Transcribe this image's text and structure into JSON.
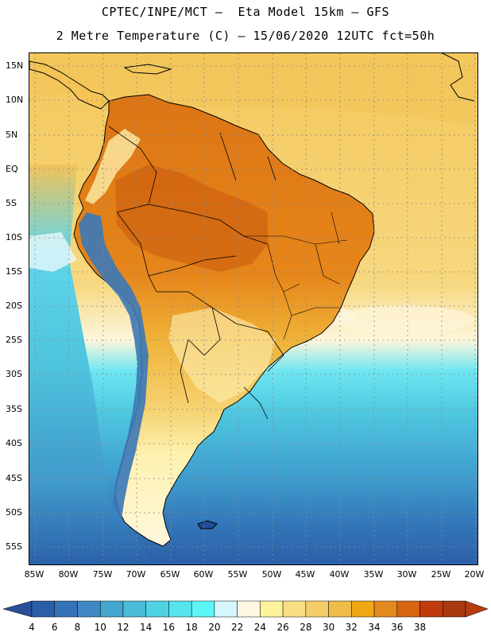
{
  "title": {
    "line1": "CPTEC/INPE/MCT –  Eta Model 15km – GFS",
    "line2": "2 Metre Temperature (C) – 15/06/2020 12UTC fct=50h"
  },
  "map": {
    "lat_labels": [
      "15N",
      "10N",
      "5N",
      "EQ",
      "5S",
      "10S",
      "15S",
      "20S",
      "25S",
      "30S",
      "35S",
      "40S",
      "45S",
      "50S",
      "55S"
    ],
    "lon_labels": [
      "85W",
      "80W",
      "75W",
      "70W",
      "65W",
      "60W",
      "55W",
      "50W",
      "45W",
      "40W",
      "35W",
      "30W",
      "25W",
      "20W"
    ]
  },
  "colorbar": {
    "levels": [
      "4",
      "6",
      "8",
      "10",
      "12",
      "14",
      "16",
      "18",
      "20",
      "22",
      "24",
      "26",
      "28",
      "30",
      "32",
      "34",
      "36",
      "38"
    ],
    "colors": [
      "#2a5ea8",
      "#3572b6",
      "#3f88c4",
      "#43a6cf",
      "#4bbcd8",
      "#4fd2e4",
      "#56e4ef",
      "#5cf6f8",
      "#d4f6fd",
      "#fef8e3",
      "#fef39c",
      "#fbdf86",
      "#f5cc6a",
      "#efbd48",
      "#f0a714",
      "#e3891e",
      "#d66410",
      "#c03a0b",
      "#a8380f"
    ],
    "under_color": "#2a4f99",
    "over_color": "#b63d10"
  }
}
